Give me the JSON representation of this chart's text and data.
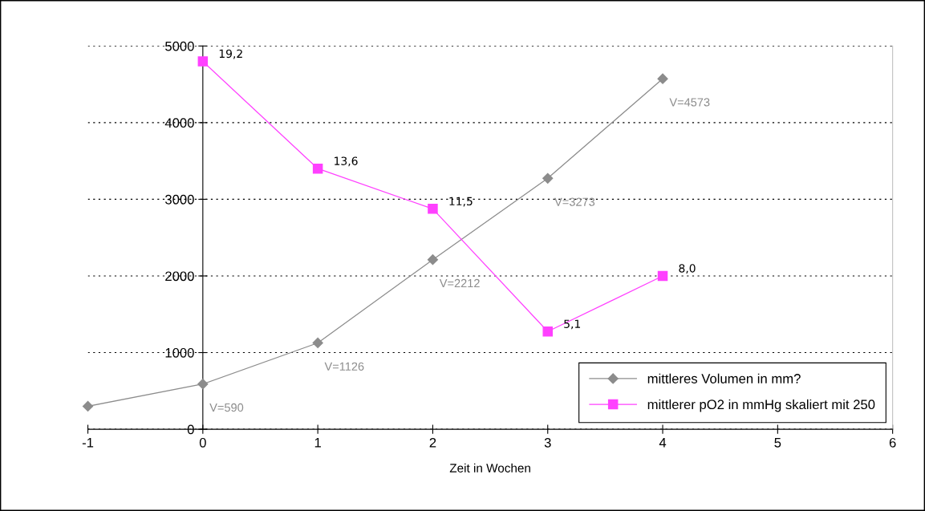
{
  "chart_data": {
    "type": "line",
    "xlabel": "Zeit in Wochen",
    "xlim": [
      -1,
      6
    ],
    "xticks": [
      -1,
      0,
      1,
      2,
      3,
      4,
      5,
      6
    ],
    "ylim": [
      0,
      5000
    ],
    "yticks": [
      0,
      1000,
      2000,
      3000,
      4000,
      5000
    ],
    "grid": "y",
    "legend": "bottom right",
    "line_style": "solid",
    "series": [
      {
        "name": "mittleres Volumen in mm?",
        "color": "#8c8c8c",
        "marker": "diamond",
        "x": [
          -1,
          0,
          1,
          2,
          3,
          4
        ],
        "values": [
          300,
          590,
          1126,
          2212,
          3273,
          4573
        ],
        "value_labels": [
          null,
          "V=590",
          "V=1126",
          "V=2212",
          "V=3273",
          "V=4573"
        ]
      },
      {
        "name": "mittlerer pO2 in mmHg skaliert mit 250",
        "color": "#ff40ff",
        "marker": "square",
        "x": [
          0,
          1,
          2,
          3,
          4
        ],
        "values": [
          4800,
          3400,
          2875,
          1275,
          2000
        ]
      }
    ],
    "annotations": [
      {
        "text": "19,2",
        "x": 0,
        "y": 4800
      },
      {
        "text": "13,6",
        "x": 1,
        "y": 3400
      },
      {
        "text": "11,5",
        "x": 2,
        "y": 2875
      },
      {
        "text": "5,1",
        "x": 3,
        "y": 1275
      },
      {
        "text": "8,0",
        "x": 4,
        "y": 2000
      }
    ]
  }
}
